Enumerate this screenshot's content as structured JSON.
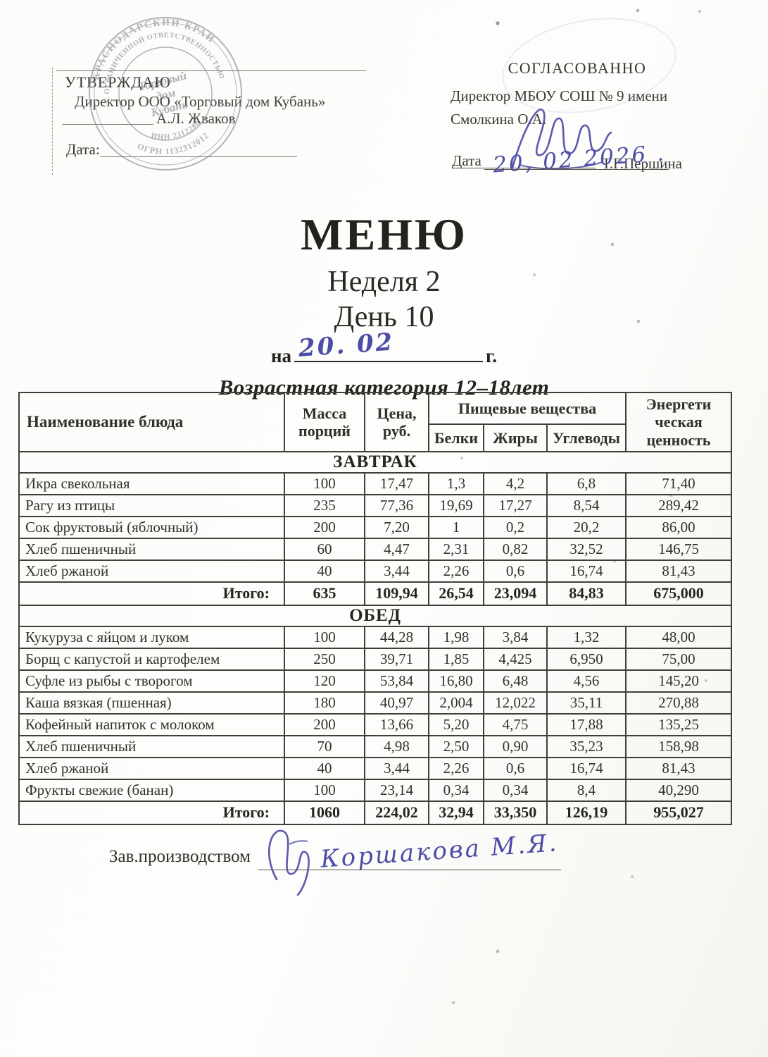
{
  "approval_left": {
    "title": "УТВЕРЖДАЮ",
    "line1": "Директор ООО «Торговый дом Кубань»",
    "signatory": "А.Л. Жваков",
    "date_label": "Дата:",
    "stamp": {
      "outer_top": "КРАСНОДАРСКИЙ КРАЙ",
      "outer_bottom": "ОГРН 1132312012",
      "inner_ring_top": "С ОГРАНИЧЕННОЙ ОТВЕТСТВЕННОСТЬЮ",
      "inner_ring_bottom": "ИНН 2312280",
      "center_line1": "Торговый",
      "center_line2": "дом",
      "center_line3": "Кубань"
    }
  },
  "approval_right": {
    "title": "СОГЛАСОВАННО",
    "line1": "Директор  МБОУ СОШ № 9 имени",
    "line2": "Смолкина О.А.",
    "signatory": "Т.Г.Першина",
    "date_label": "Дата",
    "date_handwritten": "20, 02   2026 ."
  },
  "title_block": {
    "title": "МЕНЮ",
    "week": "Неделя 2",
    "day": "День 10",
    "date_prefix": "на",
    "date_handwritten": "20. 02",
    "date_suffix": "г.",
    "age_category": "Возрастная категория 12–18лет"
  },
  "table": {
    "headers": {
      "name": "Наименование блюда",
      "mass": "Масса\nпорций",
      "price": "Цена,\nруб.",
      "nutrients_group": "Пищевые вещества",
      "protein": "Белки",
      "fat": "Жиры",
      "carbs": "Углеводы",
      "energy": "Энергети\nческая\nценность"
    },
    "sections": [
      {
        "label": "ЗАВТРАК",
        "rows": [
          [
            "Икра свекольная",
            "100",
            "17,47",
            "1,3",
            "4,2",
            "6,8",
            "71,40"
          ],
          [
            "Рагу из птицы",
            "235",
            "77,36",
            "19,69",
            "17,27",
            "8,54",
            "289,42"
          ],
          [
            "Сок фруктовый (яблочный)",
            "200",
            "7,20",
            "1",
            "0,2",
            "20,2",
            "86,00"
          ],
          [
            "Хлеб пшеничный",
            "60",
            "4,47",
            "2,31",
            "0,82",
            "32,52",
            "146,75"
          ],
          [
            "Хлеб ржаной",
            "40",
            "3,44",
            "2,26",
            "0,6",
            "16,74",
            "81,43"
          ]
        ],
        "total": [
          "Итого:",
          "635",
          "109,94",
          "26,54",
          "23,094",
          "84,83",
          "675,000"
        ]
      },
      {
        "label": "ОБЕД",
        "rows": [
          [
            "Кукуруза с яйцом и луком",
            "100",
            "44,28",
            "1,98",
            "3,84",
            "1,32",
            "48,00"
          ],
          [
            "Борщ с капустой и картофелем",
            "250",
            "39,71",
            "1,85",
            "4,425",
            "6,950",
            "75,00"
          ],
          [
            "Суфле из рыбы с творогом",
            "120",
            "53,84",
            "16,80",
            "6,48",
            "4,56",
            "145,20"
          ],
          [
            "Каша вязкая (пшенная)",
            "180",
            "40,97",
            "2,004",
            "12,022",
            "35,11",
            "270,88"
          ],
          [
            "Кофейный напиток с молоком",
            "200",
            "13,66",
            "5,20",
            "4,75",
            "17,88",
            "135,25"
          ],
          [
            "Хлеб пшеничный",
            "70",
            "4,98",
            "2,50",
            "0,90",
            "35,23",
            "158,98"
          ],
          [
            "Хлеб ржаной",
            "40",
            "3,44",
            "2,26",
            "0,6",
            "16,74",
            "81,43"
          ],
          [
            "Фрукты свежие (банан)",
            "100",
            "23,14",
            "0,34",
            "0,34",
            "8,4",
            "40,290"
          ]
        ],
        "total": [
          "Итого:",
          "1060",
          "224,02",
          "32,94",
          "33,350",
          "126,19",
          "955,027"
        ]
      }
    ]
  },
  "footer": {
    "label": "Зав.производством",
    "signature_handwritten": "Коршакова  М.Я."
  }
}
